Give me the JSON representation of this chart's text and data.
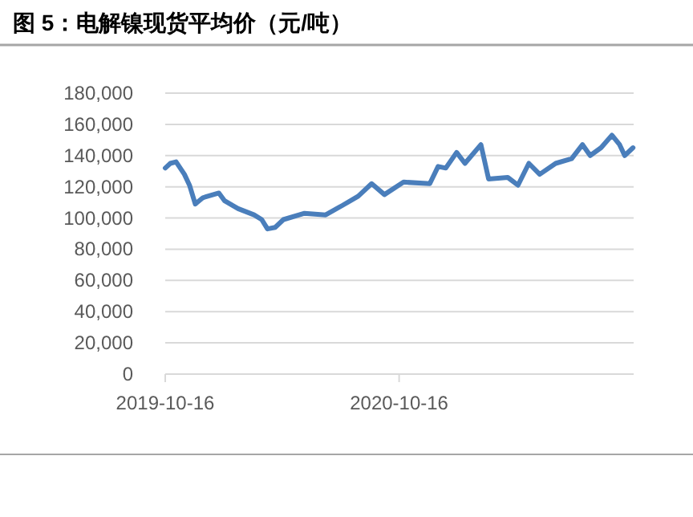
{
  "chart_data": {
    "type": "line",
    "title": "图 5：电解镍现货平均价（元/吨）",
    "x": [
      "2019-10-16",
      "2019-10-24",
      "2019-11-02",
      "2019-11-15",
      "2019-11-23",
      "2019-12-02",
      "2019-12-14",
      "2020-01-08",
      "2020-01-17",
      "2020-02-07",
      "2020-03-03",
      "2020-03-15",
      "2020-03-24",
      "2020-04-05",
      "2020-04-18",
      "2020-05-21",
      "2020-06-23",
      "2020-07-19",
      "2020-08-13",
      "2020-09-03",
      "2020-09-23",
      "2020-10-23",
      "2020-12-03",
      "2020-12-16",
      "2020-12-28",
      "2021-01-14",
      "2021-01-27",
      "2021-02-21",
      "2021-03-05",
      "2021-04-04",
      "2021-04-20",
      "2021-05-07",
      "2021-05-24",
      "2021-06-18",
      "2021-07-13",
      "2021-07-30",
      "2021-08-11",
      "2021-08-28",
      "2021-09-14",
      "2021-09-26",
      "2021-10-04",
      "2021-10-17"
    ],
    "series": [
      {
        "color": "#4a7ebb",
        "values": [
          132000,
          135000,
          136000,
          128000,
          121000,
          109000,
          113000,
          116000,
          111000,
          106000,
          102000,
          99000,
          93000,
          94000,
          99000,
          103000,
          102000,
          108000,
          114000,
          122000,
          115000,
          123000,
          122000,
          133000,
          132000,
          142000,
          135000,
          147000,
          125000,
          126000,
          121000,
          135000,
          128000,
          135000,
          138000,
          147000,
          140000,
          145000,
          153000,
          147000,
          140000,
          145000
        ]
      }
    ],
    "xlim": [
      "2019-10-16",
      "2021-10-18"
    ],
    "xticks": [
      "2019-10-16",
      "2020-10-16"
    ],
    "ylim": [
      0,
      180000
    ],
    "yticks": [
      {
        "value": 0,
        "label": "0"
      },
      {
        "value": 20000,
        "label": "20,000"
      },
      {
        "value": 40000,
        "label": "40,000"
      },
      {
        "value": 60000,
        "label": "60,000"
      },
      {
        "value": 80000,
        "label": "80,000"
      },
      {
        "value": 100000,
        "label": "100,000"
      },
      {
        "value": 120000,
        "label": "120,000"
      },
      {
        "value": 140000,
        "label": "140,000"
      },
      {
        "value": 160000,
        "label": "160,000"
      },
      {
        "value": 180000,
        "label": "180,000"
      }
    ],
    "grid": "y",
    "marker": "none",
    "line_style": "solid"
  }
}
